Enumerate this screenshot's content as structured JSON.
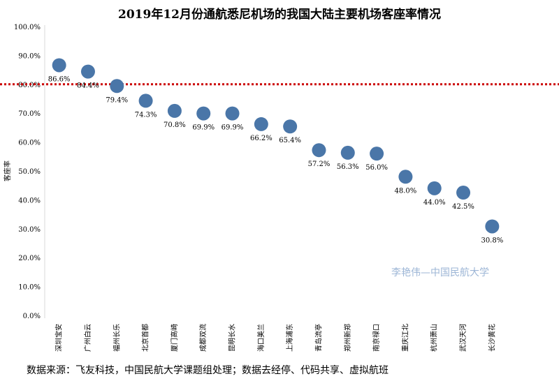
{
  "title": "2019年12月份通航悉尼机场的我国大陆主要机场客座率情况",
  "source": "数据来源：飞友科技，中国民航大学课题组处理；数据去经停、代码共享、虚拟航班",
  "watermark": "李艳伟—中国民航大学",
  "colors": {
    "marker": "#4a76a8",
    "reference": "#cc0000"
  },
  "chart_data": {
    "type": "scatter",
    "title": "2019年12月份通航悉尼机场的我国大陆主要机场客座率情况",
    "ylabel": "客座率",
    "ylim": [
      0,
      100
    ],
    "yticks": [
      0,
      10,
      20,
      30,
      40,
      50,
      60,
      70,
      80,
      90,
      100
    ],
    "ytick_labels": [
      "0.0%",
      "10.0%",
      "20.0%",
      "30.0%",
      "40.0%",
      "50.0%",
      "60.0%",
      "70.0%",
      "80.0%",
      "90.0%",
      "100.0%"
    ],
    "categories": [
      "深圳宝安",
      "广州白云",
      "福州长乐",
      "北京首都",
      "厦门高崎",
      "成都双流",
      "昆明长水",
      "海口美兰",
      "上海浦东",
      "青岛流亭",
      "郑州新郑",
      "南京禄口",
      "重庆江北",
      "杭州萧山",
      "武汉天河",
      "长沙黄花"
    ],
    "values": [
      86.6,
      84.4,
      79.4,
      74.3,
      70.8,
      69.9,
      69.9,
      66.2,
      65.4,
      57.2,
      56.3,
      56.0,
      48.0,
      44.0,
      42.5,
      30.8
    ],
    "value_labels": [
      "86.6%",
      "84.4%",
      "79.4%",
      "74.3%",
      "70.8%",
      "69.9%",
      "69.9%",
      "66.2%",
      "65.4%",
      "57.2%",
      "56.3%",
      "56.0%",
      "48.0%",
      "44.0%",
      "42.5%",
      "30.8%"
    ],
    "reference_line": 80,
    "grid": false,
    "legend": "none"
  }
}
